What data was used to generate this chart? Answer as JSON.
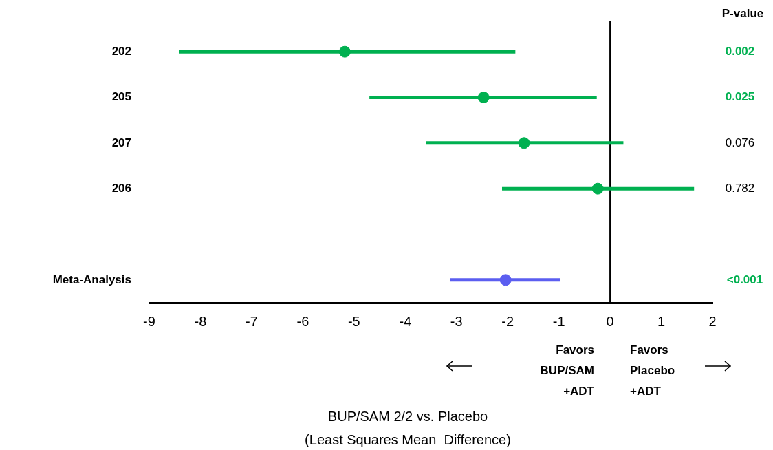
{
  "chart_data": {
    "type": "scatter",
    "orientation": "horizontal",
    "categories": [
      "202",
      "205",
      "207",
      "206",
      null,
      "Meta-Analysis"
    ],
    "values": [
      -5.18,
      -2.47,
      -1.68,
      -0.24,
      null,
      -2.04
    ],
    "errors": [
      [
        -8.41,
        -1.85
      ],
      [
        -4.7,
        -0.26
      ],
      [
        -3.6,
        0.26
      ],
      [
        -2.11,
        1.64
      ],
      null,
      [
        -3.12,
        -0.97
      ]
    ],
    "colors": [
      "#00b050",
      "#00b050",
      "#00b050",
      "#00b050",
      "#00b050",
      "#5b5ef0"
    ],
    "xlim": [
      -9,
      2
    ],
    "xticks": [
      -9,
      -8,
      -7,
      -6,
      -5,
      -4,
      -3,
      -2,
      -1,
      0,
      1,
      2
    ],
    "ref_lines": [
      {
        "axis": "x",
        "value": 0,
        "color": "#000000"
      }
    ],
    "grid": false,
    "legend": false,
    "marker": "circle",
    "annotations": [
      "P-value",
      "0.002",
      "0.025",
      "0.076",
      "0.782",
      "<0.001",
      "Favors\nBUP/SAM\n+ADT",
      "Favors\nPlacebo\n+ADT",
      "BUP/SAM 2/2 vs. Placebo\n(Least Squares Mean  Difference)"
    ]
  }
}
